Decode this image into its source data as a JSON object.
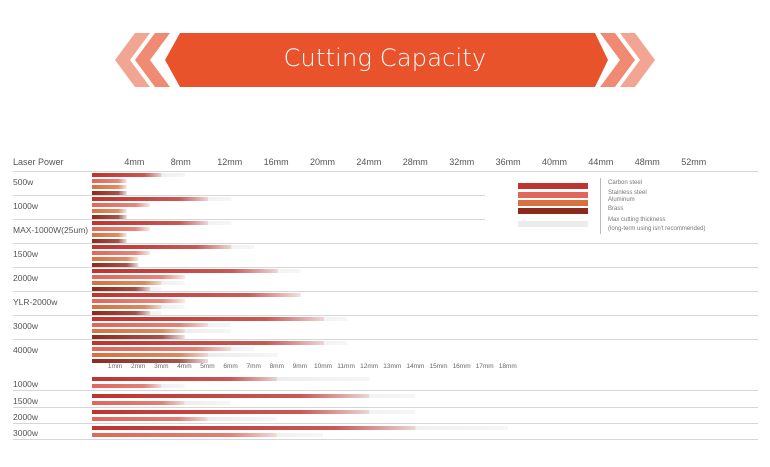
{
  "header": {
    "title": "Cutting Capacity",
    "accent_color": "#e9532b",
    "chevron_color": "#f2a593"
  },
  "chart_data": [
    {
      "type": "bar",
      "title": "",
      "row_header": "Laser Power",
      "x_ticks": [
        "4mm",
        "8mm",
        "12mm",
        "16mm",
        "20mm",
        "24mm",
        "28mm",
        "32mm",
        "36mm",
        "40mm",
        "44mm",
        "48mm",
        "52mm"
      ],
      "xlim": [
        0,
        54
      ],
      "series": [
        {
          "name": "Carbon steel",
          "color": "#bf3430"
        },
        {
          "name": "Stainless steel",
          "color": "#e0675a"
        },
        {
          "name": "Aluminum",
          "color": "#d7713f"
        },
        {
          "name": "Brass",
          "color": "#8c2a1e"
        }
      ],
      "legend": {
        "entries": [
          "Carbon steel",
          "Stainless steel",
          "Aluminum",
          "Brass"
        ],
        "max_label": "Max cutting thickness",
        "long_term_label": "(long-term using isn't recommended)"
      },
      "rows": [
        {
          "label": "500w",
          "values": [
            6,
            3,
            3,
            3
          ],
          "max": [
            8,
            3,
            3,
            3
          ]
        },
        {
          "label": "1000w",
          "values": [
            10,
            5,
            3,
            3
          ],
          "max": [
            12,
            5,
            3,
            3
          ]
        },
        {
          "label": "MAX-1000W(25um)",
          "values": [
            10,
            5,
            3,
            3
          ],
          "max": [
            12,
            5,
            3,
            3
          ]
        },
        {
          "label": "1500w",
          "values": [
            12,
            5,
            4,
            4
          ],
          "max": [
            14,
            5,
            4,
            4
          ]
        },
        {
          "label": "2000w",
          "values": [
            16,
            8,
            6,
            5
          ],
          "max": [
            18,
            8,
            8,
            6
          ]
        },
        {
          "label": "YLR-2000w",
          "values": [
            18,
            8,
            6,
            5
          ],
          "max": [
            18,
            8,
            8,
            6
          ]
        },
        {
          "label": "3000w",
          "values": [
            20,
            10,
            8,
            8
          ],
          "max": [
            22,
            12,
            12,
            8
          ]
        },
        {
          "label": "4000w",
          "values": [
            20,
            12,
            10,
            10
          ],
          "max": [
            22,
            14,
            16,
            10
          ]
        }
      ]
    },
    {
      "type": "bar",
      "title": "",
      "x_ticks": [
        "1mm",
        "2mm",
        "3mm",
        "4mm",
        "5mm",
        "6mm",
        "7mm",
        "8mm",
        "9mm",
        "10mm",
        "11mm",
        "12mm",
        "13mm",
        "14mm",
        "15mm",
        "16mm",
        "17mm",
        "18mm"
      ],
      "xlim": [
        0,
        19
      ],
      "rows": [
        {
          "label": "1000w",
          "values": [
            8,
            3
          ],
          "max": [
            12,
            4
          ]
        },
        {
          "label": "1500w",
          "values": [
            12,
            4
          ],
          "max": [
            14,
            6
          ]
        },
        {
          "label": "2000w",
          "values": [
            12,
            5
          ],
          "max": [
            14,
            8
          ]
        },
        {
          "label": "3000w",
          "values": [
            14,
            8
          ],
          "max": [
            18,
            10
          ]
        }
      ]
    }
  ]
}
